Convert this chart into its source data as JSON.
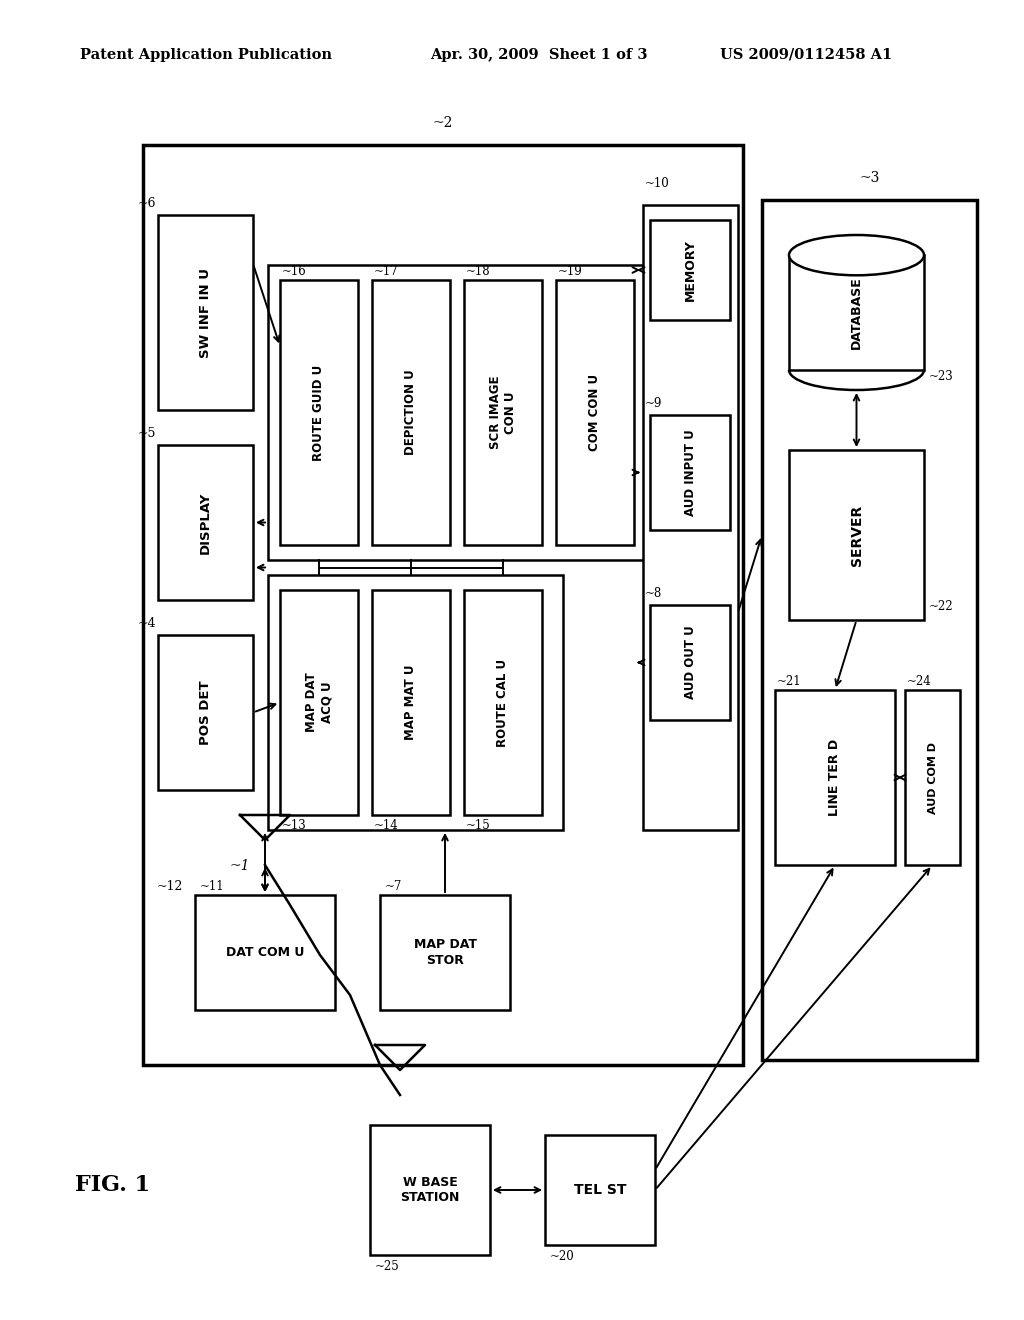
{
  "title_left": "Patent Application Publication",
  "title_mid": "Apr. 30, 2009  Sheet 1 of 3",
  "title_right": "US 2009/0112458 A1",
  "fig_label": "FIG. 1",
  "background": "#ffffff"
}
